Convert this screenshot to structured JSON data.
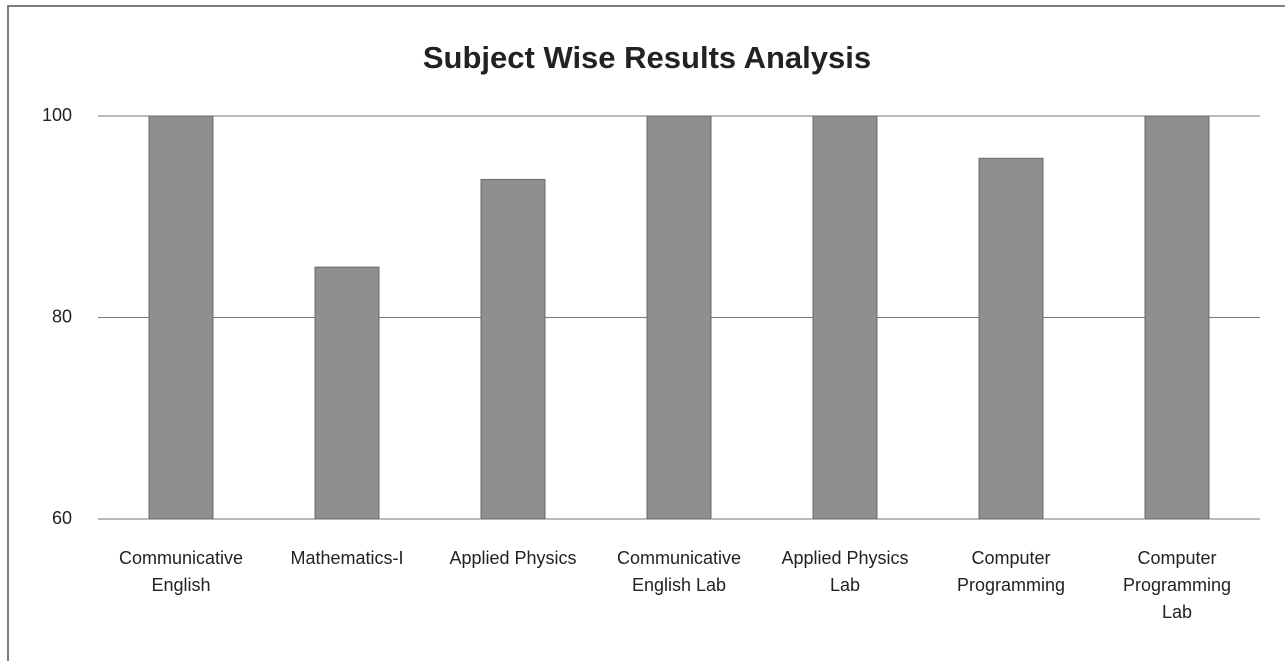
{
  "chart_data": {
    "type": "bar",
    "title": "Subject Wise Results Analysis",
    "categories": [
      "Communicative English",
      "Mathematics-I",
      "Applied Physics",
      "Communicative English Lab",
      "Applied Physics Lab",
      "Computer Programming",
      "Computer Programming Lab"
    ],
    "values": [
      100,
      85,
      93.7,
      100,
      100,
      95.8,
      100
    ],
    "color": "#8f8f8f",
    "ylim": [
      60,
      100
    ],
    "yticks": [
      60,
      80,
      100
    ],
    "grid": true
  }
}
